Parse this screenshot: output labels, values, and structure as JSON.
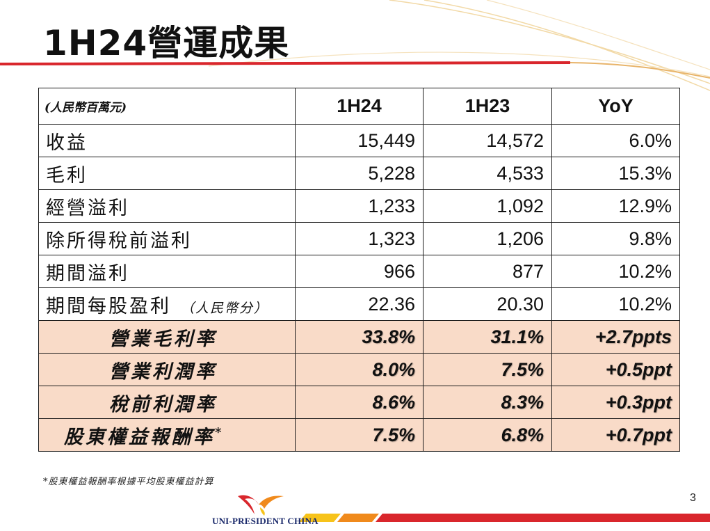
{
  "title": "1H24營運成果",
  "table": {
    "header": {
      "unit": "(人民幣百萬元)",
      "col1": "1H24",
      "col2": "1H23",
      "col3": "YoY"
    },
    "rows": [
      {
        "label": "收益",
        "sub": "",
        "v1": "15,449",
        "v2": "14,572",
        "v3": "6.0%"
      },
      {
        "label": "毛利",
        "sub": "",
        "v1": "5,228",
        "v2": "4,533",
        "v3": "15.3%"
      },
      {
        "label": "經營溢利",
        "sub": "",
        "v1": "1,233",
        "v2": "1,092",
        "v3": "12.9%"
      },
      {
        "label": "除所得稅前溢利",
        "sub": "",
        "v1": "1,323",
        "v2": "1,206",
        "v3": "9.8%"
      },
      {
        "label": "期間溢利",
        "sub": "",
        "v1": "966",
        "v2": "877",
        "v3": "10.2%"
      },
      {
        "label": "期間每股盈利",
        "sub": "（人民幣分）",
        "v1": "22.36",
        "v2": "20.30",
        "v3": "10.2%"
      }
    ],
    "ratios": [
      {
        "label": "營業毛利率",
        "v1": "33.8%",
        "v2": "31.1%",
        "v3": "+2.7ppts"
      },
      {
        "label": "營業利潤率",
        "v1": "8.0%",
        "v2": "7.5%",
        "v3": "+0.5ppt"
      },
      {
        "label": "稅前利潤率",
        "v1": "8.6%",
        "v2": "8.3%",
        "v3": "+0.3ppt"
      },
      {
        "label": "股東權益報酬率",
        "mark": "*",
        "v1": "7.5%",
        "v2": "6.8%",
        "v3": "+0.7ppt"
      }
    ]
  },
  "footnote": "*股東權益報酬率根據平均股東權益計算",
  "page_number": "3",
  "brand": "UNI-PRESIDENT CHINA",
  "colors": {
    "accent_red": "#d9262c",
    "accent_orange": "#f08a1c",
    "accent_yellow": "#f7c31a",
    "ratio_row_bg": "#f9dbc8"
  }
}
